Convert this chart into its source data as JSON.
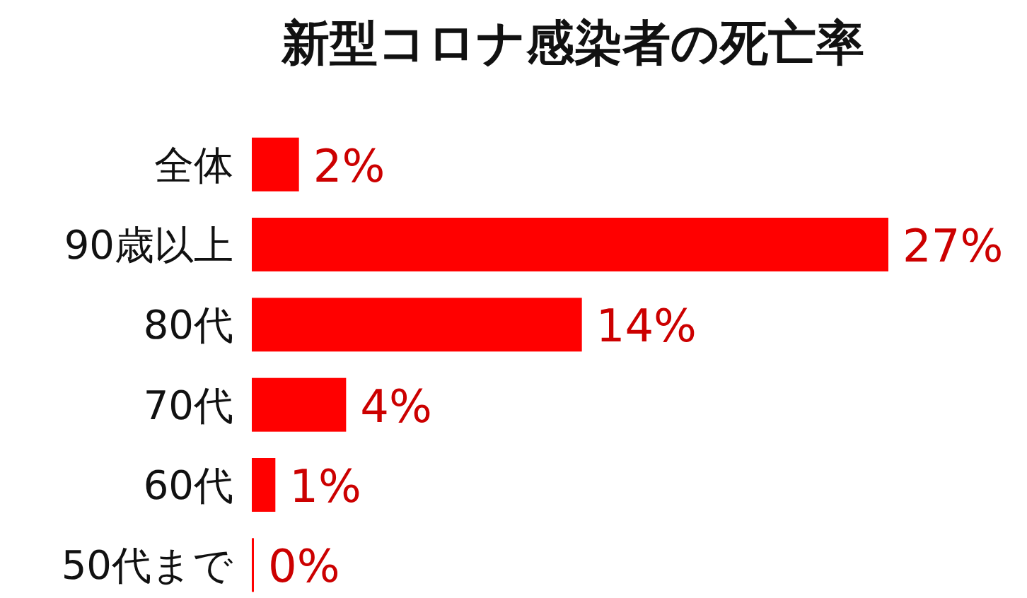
{
  "chart_data": {
    "type": "bar",
    "orientation": "horizontal",
    "title": "新型コロナ感染者の死亡率",
    "categories": [
      "全体",
      "90歳以上",
      "80代",
      "70代",
      "60代",
      "50代まで"
    ],
    "values": [
      2,
      27,
      14,
      4,
      1,
      0
    ],
    "value_labels": [
      "2%",
      "27%",
      "14%",
      "4%",
      "1%",
      "0%"
    ],
    "color": "#ff0000"
  }
}
